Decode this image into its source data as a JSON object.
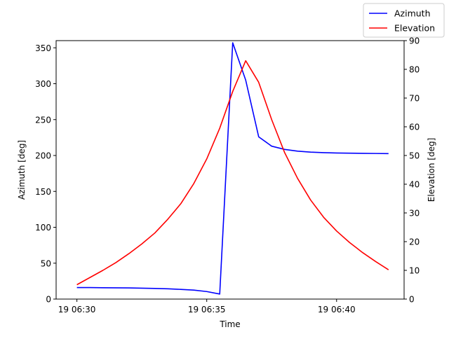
{
  "chart_data": {
    "type": "line",
    "xlabel": "Time",
    "ylabel_left": "Azimuth [deg]",
    "ylabel_right": "Elevation [deg]",
    "x_ticks": [
      "19 06:30",
      "19 06:35",
      "19 06:40"
    ],
    "x_tick_minutes": [
      0,
      5,
      10
    ],
    "xlim_minutes": [
      -0.8,
      12.6
    ],
    "ylim_left": [
      0,
      360
    ],
    "ylim_right": [
      0,
      90
    ],
    "y_ticks_left": [
      0,
      50,
      100,
      150,
      200,
      250,
      300,
      350
    ],
    "y_ticks_right": [
      0,
      10,
      20,
      30,
      40,
      50,
      60,
      70,
      80,
      90
    ],
    "grid": false,
    "legend": "top-right",
    "series": [
      {
        "name": "Azimuth",
        "axis": "left",
        "color": "#0000ff",
        "x": [
          0,
          0.5,
          1,
          1.5,
          2,
          2.5,
          3,
          3.5,
          4,
          4.5,
          5,
          5.5,
          6,
          6.5,
          7,
          7.5,
          8,
          8.5,
          9,
          9.5,
          10,
          10.5,
          11,
          11.5,
          12
        ],
        "values": [
          16,
          16,
          15.8,
          15.7,
          15.5,
          15.2,
          14.8,
          14.3,
          13.5,
          12.5,
          10.5,
          7,
          357,
          305,
          226,
          213,
          208.5,
          206,
          204.7,
          204,
          203.5,
          203.2,
          203,
          202.8,
          202.6
        ]
      },
      {
        "name": "Elevation",
        "axis": "right",
        "color": "#ff0000",
        "x": [
          0,
          0.5,
          1,
          1.5,
          2,
          2.5,
          3,
          3.5,
          4,
          4.5,
          5,
          5.5,
          6,
          6.5,
          7,
          7.5,
          8,
          8.5,
          9,
          9.5,
          10,
          10.5,
          11,
          11.5,
          12
        ],
        "values": [
          5,
          7.5,
          10,
          12.7,
          15.8,
          19.2,
          23,
          27.8,
          33.2,
          40.2,
          48.8,
          59.5,
          72.3,
          83,
          75.5,
          62.5,
          51,
          42,
          34.5,
          28.5,
          23.7,
          19.7,
          16.2,
          13.1,
          10.2
        ]
      }
    ]
  }
}
